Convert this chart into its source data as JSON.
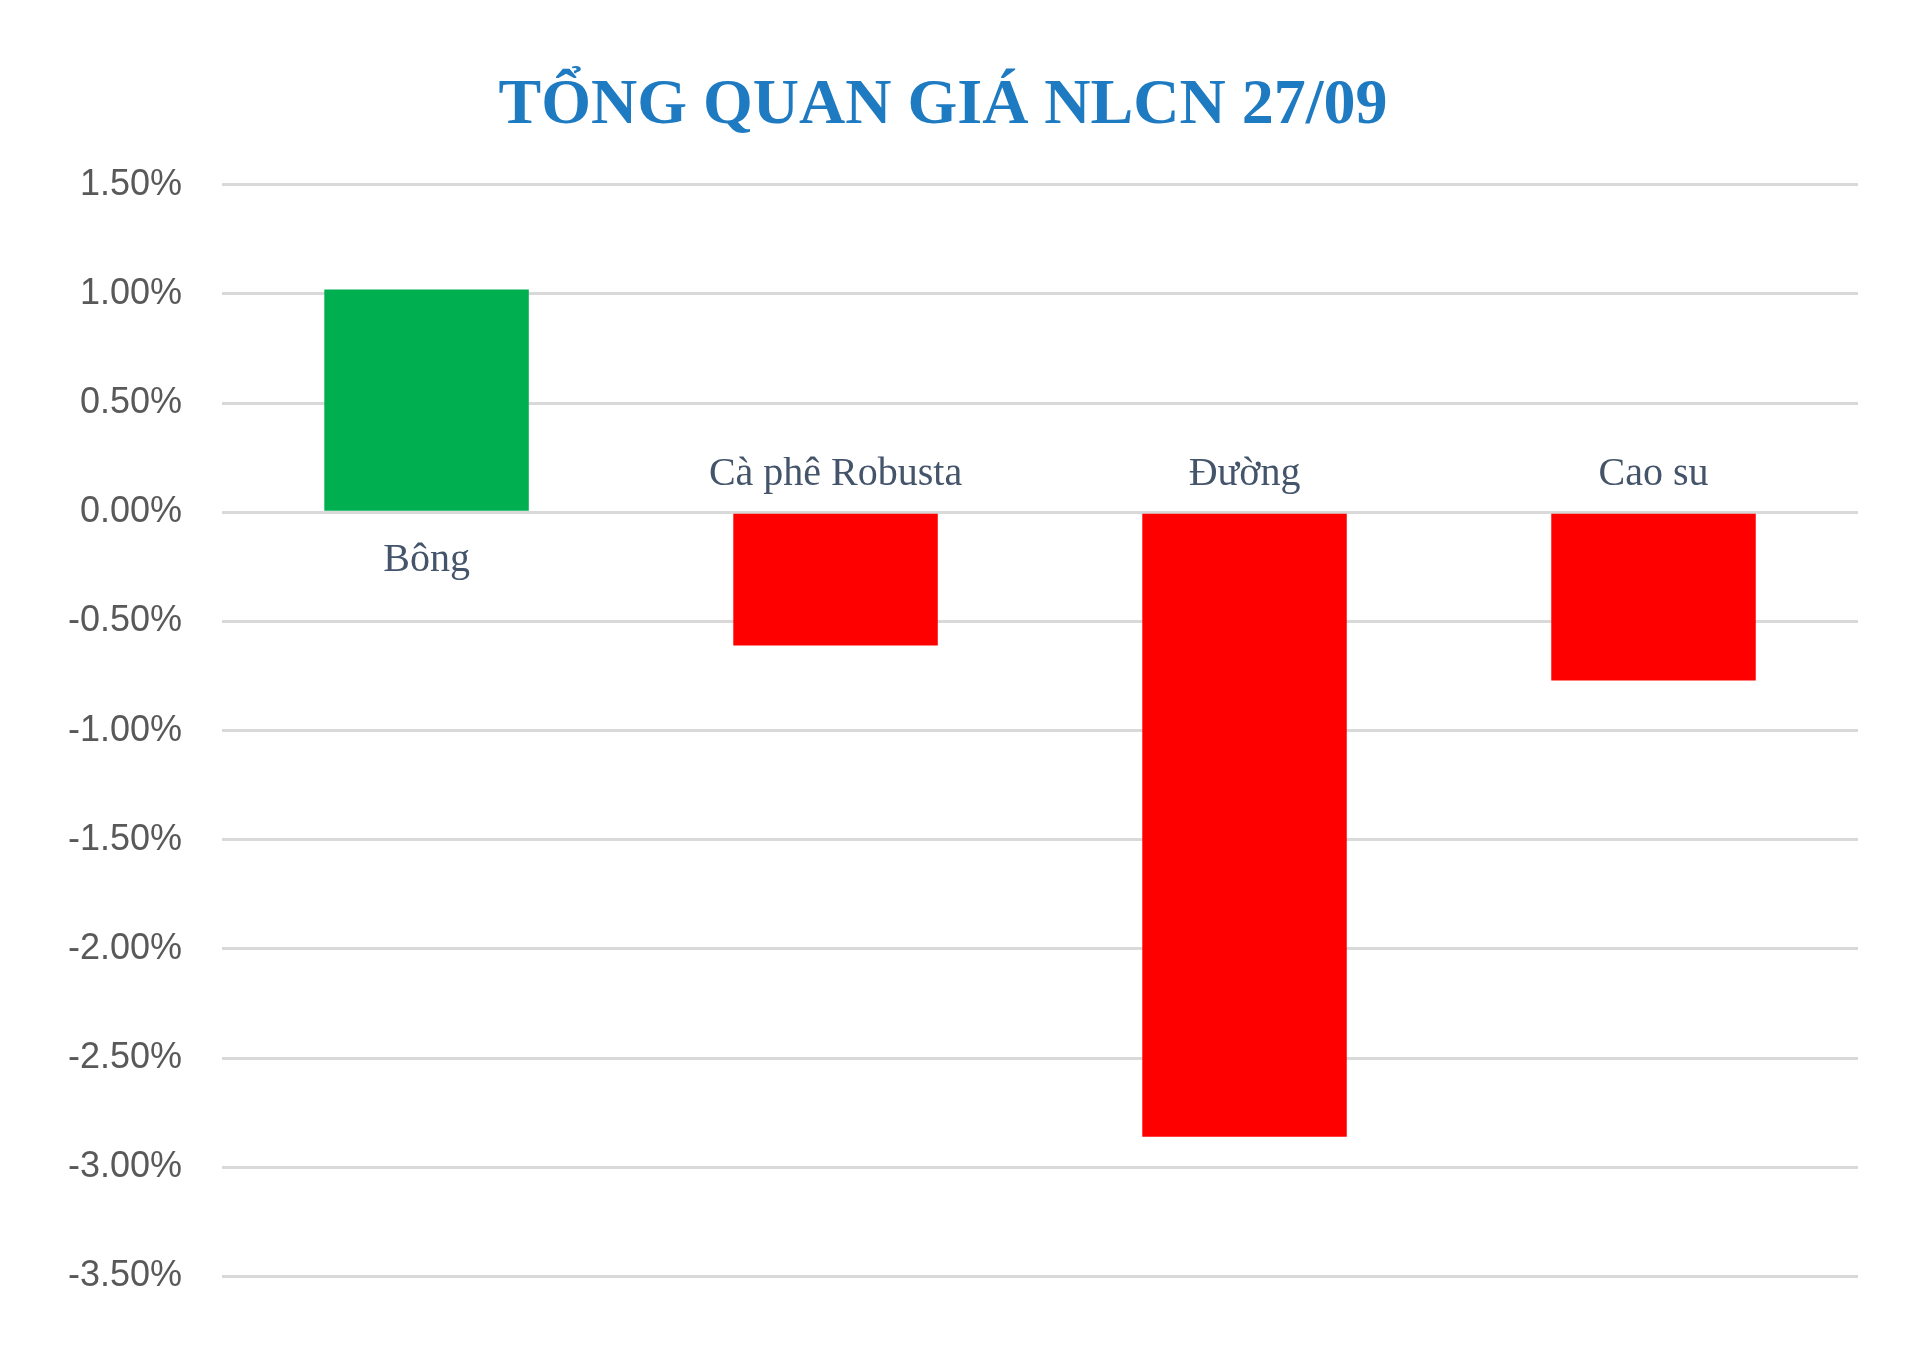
{
  "chart_data": {
    "type": "bar",
    "title": "TỔNG QUAN GIÁ NLCN 27/09",
    "categories": [
      "Bông",
      "Cà phê Robusta",
      "Đường",
      "Cao su"
    ],
    "values": [
      1.02,
      -0.61,
      -2.86,
      -0.77
    ],
    "colors": [
      "#00b050",
      "#ff0000",
      "#ff0000",
      "#ff0000"
    ],
    "ylim": [
      -3.5,
      1.5
    ],
    "yticks": [
      {
        "value": -3.5,
        "label": "-3.50%"
      },
      {
        "value": -3,
        "label": "-3.00%"
      },
      {
        "value": -2.5,
        "label": "-2.50%"
      },
      {
        "value": -2,
        "label": "-2.00%"
      },
      {
        "value": -1.5,
        "label": "-1.50%"
      },
      {
        "value": -1,
        "label": "-1.00%"
      },
      {
        "value": -0.5,
        "label": "-0.50%"
      },
      {
        "value": 0,
        "label": "0.00%"
      },
      {
        "value": 0.5,
        "label": "0.50%"
      },
      {
        "value": 1,
        "label": "1.00%"
      },
      {
        "value": 1.5,
        "label": "1.50%"
      }
    ],
    "grid": "y",
    "legend": false,
    "tick_labels": "y"
  }
}
